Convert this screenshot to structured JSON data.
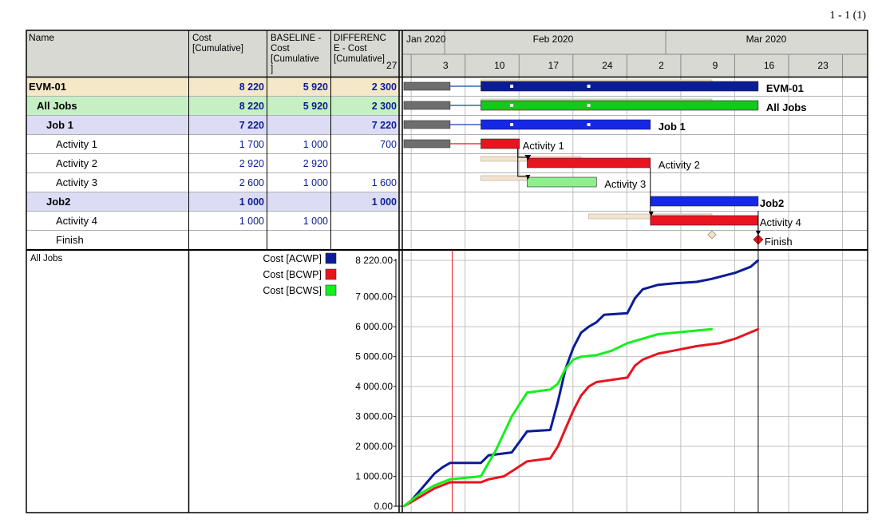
{
  "page_counter": "1 - 1 (1)",
  "table": {
    "headers": {
      "name": "Name",
      "cost": [
        "Cost",
        "[Cumulative]"
      ],
      "baseline": [
        "BASELINE -",
        "Cost",
        "[Cumulative",
        "]"
      ],
      "difference": [
        "DIFFERENC",
        "E - Cost",
        "[Cumulative]"
      ]
    },
    "rows": [
      {
        "name": "EVM-01",
        "cost": "8 220",
        "baseline": "5 920",
        "diff": "2 300",
        "level": 0,
        "type": "project"
      },
      {
        "name": "All Jobs",
        "cost": "8 220",
        "baseline": "5 920",
        "diff": "2 300",
        "level": 1,
        "type": "group"
      },
      {
        "name": "Job 1",
        "cost": "7 220",
        "baseline": "",
        "diff": "7 220",
        "level": 2,
        "type": "job"
      },
      {
        "name": "Activity 1",
        "cost": "1 700",
        "baseline": "1 000",
        "diff": "700",
        "level": 3,
        "type": "activity"
      },
      {
        "name": "Activity 2",
        "cost": "2 920",
        "baseline": "2 920",
        "diff": "",
        "level": 3,
        "type": "activity"
      },
      {
        "name": "Activity 3",
        "cost": "2 600",
        "baseline": "1 000",
        "diff": "1 600",
        "level": 3,
        "type": "activity"
      },
      {
        "name": "Job2",
        "cost": "1 000",
        "baseline": "",
        "diff": "1 000",
        "level": 2,
        "type": "job"
      },
      {
        "name": "Activity 4",
        "cost": "1 000",
        "baseline": "1 000",
        "diff": "",
        "level": 3,
        "type": "activity"
      },
      {
        "name": "Finish",
        "cost": "",
        "baseline": "",
        "diff": "",
        "level": 3,
        "type": "milestone"
      }
    ],
    "chart_row_label": "All Jobs"
  },
  "timescale": {
    "months": [
      "Jan 2020",
      "Feb 2020",
      "Mar 2020"
    ],
    "weeks": [
      "27",
      "3",
      "10",
      "17",
      "24",
      "2",
      "9",
      "16",
      "23"
    ]
  },
  "colors": {
    "project_row": "#f5e8c8",
    "group_row": "#c6f0c4",
    "job_row": "#dcdcf5",
    "acwp": "#0a1c96",
    "bcwp": "#e8141e",
    "bcws": "#14f01e",
    "baseline_bar": "#f2e4d0",
    "summary_gray": "#6e6e6e",
    "value_text": "#0a1c96"
  },
  "gantt": {
    "unit": "days since 2020-01-26",
    "tasks": [
      {
        "label": "EVM-01",
        "color": "navy",
        "summary_start": 0,
        "summary_end": 6,
        "start": 10,
        "end": 46,
        "baseline_start": 10,
        "baseline_end": 40
      },
      {
        "label": "All Jobs",
        "color": "green",
        "summary_start": 0,
        "summary_end": 6,
        "start": 10,
        "end": 46,
        "baseline_start": 10,
        "baseline_end": 40
      },
      {
        "label": "Job 1",
        "color": "blue",
        "summary_start": 0,
        "summary_end": 6,
        "start": 10,
        "end": 32
      },
      {
        "label": "Activity 1",
        "color": "red",
        "summary_start": 0,
        "summary_end": 6,
        "start": 10,
        "end": 15
      },
      {
        "label": "Activity 2",
        "color": "red",
        "start": 16,
        "end": 32,
        "baseline_start": 10,
        "baseline_end": 23
      },
      {
        "label": "Activity 3",
        "color": "lightgreen",
        "start": 16,
        "end": 25,
        "baseline_start": 10,
        "baseline_end": 16
      },
      {
        "label": "Job2",
        "color": "blue",
        "start": 32,
        "end": 46
      },
      {
        "label": "Activity 4",
        "color": "red",
        "start": 32,
        "end": 46,
        "baseline_start": 24,
        "baseline_end": 40
      },
      {
        "label": "Finish",
        "milestone": 46,
        "baseline_milestone": 40
      }
    ],
    "status_line": 7,
    "finish_line": 46
  },
  "chart_data": {
    "type": "line",
    "title": "All Jobs",
    "xlabel": "",
    "ylabel": "",
    "ylim": [
      0,
      8220
    ],
    "y_ticks": [
      "0.00",
      "1 000.00",
      "2 000.00",
      "3 000.00",
      "4 000.00",
      "5 000.00",
      "6 000.00",
      "7 000.00",
      "8 220.00"
    ],
    "y_tick_values": [
      0,
      1000,
      2000,
      3000,
      4000,
      5000,
      6000,
      7000,
      8220
    ],
    "x_unit": "days since 2020-01-26",
    "series": [
      {
        "name": "Cost [ACWP]",
        "color": "#0a1c96",
        "points": [
          [
            0,
            0
          ],
          [
            1,
            200
          ],
          [
            2,
            500
          ],
          [
            3,
            800
          ],
          [
            4,
            1100
          ],
          [
            5,
            1300
          ],
          [
            6,
            1450
          ],
          [
            7,
            1450
          ],
          [
            10,
            1450
          ],
          [
            11,
            1700
          ],
          [
            14,
            1800
          ],
          [
            15,
            2150
          ],
          [
            16,
            2500
          ],
          [
            19,
            2550
          ],
          [
            20,
            3500
          ],
          [
            21,
            4600
          ],
          [
            22,
            5300
          ],
          [
            23,
            5800
          ],
          [
            24,
            6000
          ],
          [
            25,
            6150
          ],
          [
            26,
            6400
          ],
          [
            29,
            6450
          ],
          [
            30,
            6950
          ],
          [
            31,
            7250
          ],
          [
            33,
            7400
          ],
          [
            35,
            7450
          ],
          [
            38,
            7500
          ],
          [
            40,
            7600
          ],
          [
            43,
            7800
          ],
          [
            45,
            8000
          ],
          [
            46,
            8220
          ]
        ]
      },
      {
        "name": "Cost [BCWP]",
        "color": "#e8141e",
        "points": [
          [
            0,
            0
          ],
          [
            2,
            300
          ],
          [
            4,
            600
          ],
          [
            6,
            800
          ],
          [
            10,
            800
          ],
          [
            11,
            900
          ],
          [
            13,
            1000
          ],
          [
            16,
            1500
          ],
          [
            19,
            1600
          ],
          [
            20,
            2000
          ],
          [
            21,
            2600
          ],
          [
            22,
            3200
          ],
          [
            23,
            3700
          ],
          [
            24,
            4000
          ],
          [
            25,
            4150
          ],
          [
            29,
            4300
          ],
          [
            30,
            4700
          ],
          [
            31,
            4900
          ],
          [
            33,
            5100
          ],
          [
            35,
            5200
          ],
          [
            38,
            5350
          ],
          [
            41,
            5450
          ],
          [
            43,
            5600
          ],
          [
            46,
            5920
          ]
        ]
      },
      {
        "name": "Cost [BCWS]",
        "color": "#14f01e",
        "points": [
          [
            0,
            0
          ],
          [
            2,
            400
          ],
          [
            4,
            700
          ],
          [
            6,
            900
          ],
          [
            10,
            1000
          ],
          [
            12,
            1900
          ],
          [
            14,
            3000
          ],
          [
            16,
            3800
          ],
          [
            19,
            3900
          ],
          [
            20,
            4100
          ],
          [
            21,
            4600
          ],
          [
            22,
            4900
          ],
          [
            23,
            5000
          ],
          [
            25,
            5050
          ],
          [
            27,
            5200
          ],
          [
            29,
            5450
          ],
          [
            31,
            5600
          ],
          [
            33,
            5750
          ],
          [
            35,
            5800
          ],
          [
            40,
            5920
          ]
        ]
      }
    ]
  }
}
